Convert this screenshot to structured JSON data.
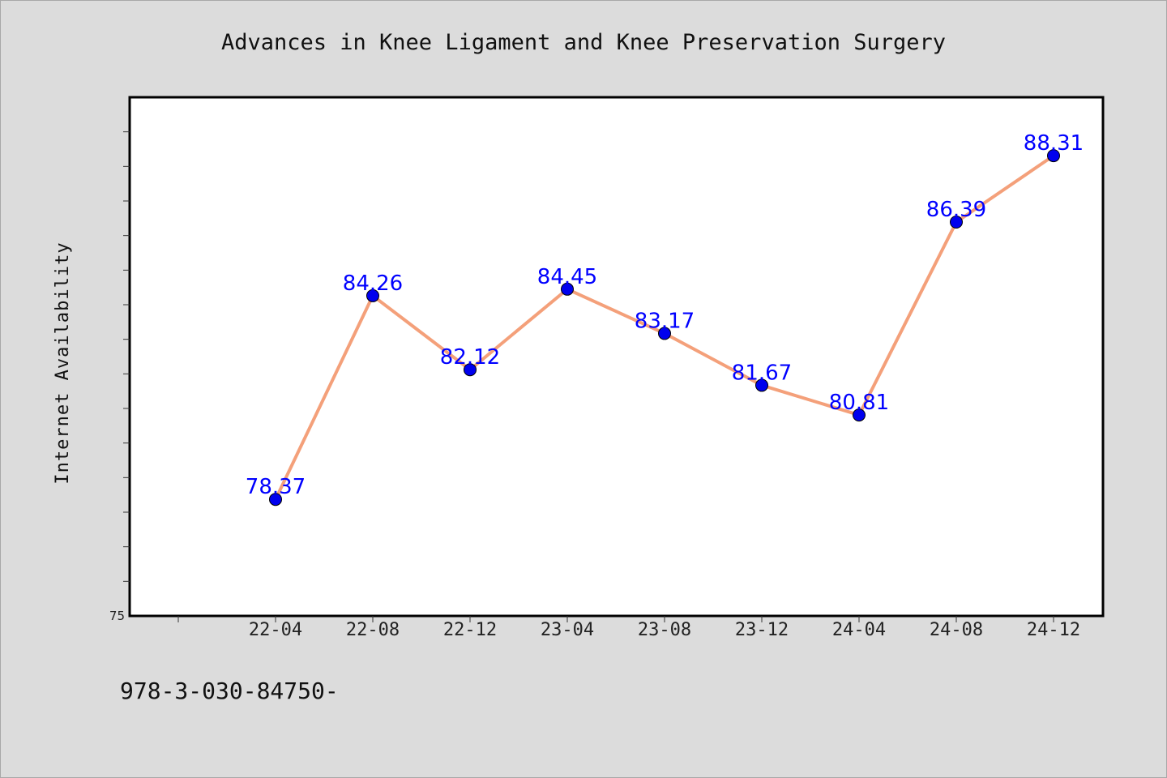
{
  "chart_data": {
    "type": "line",
    "title": "Advances in Knee Ligament and Knee Preservation Surgery",
    "ylabel": "Internet Availability",
    "xlabel": "",
    "categories": [
      "22-04",
      "22-08",
      "22-12",
      "23-04",
      "23-08",
      "23-12",
      "24-04",
      "24-08",
      "24-12"
    ],
    "series": [
      {
        "values": [
          78.37,
          84.26,
          82.12,
          84.45,
          83.17,
          81.67,
          80.81,
          86.39,
          88.31
        ],
        "labels": [
          "78.37",
          "84.26",
          "82.12",
          "84.45",
          "83.17",
          "81.67",
          "80.81",
          "86.39",
          "88.31"
        ],
        "line_color": "#f4a07a",
        "marker_color": "#0000ee"
      }
    ],
    "ylim": [
      75,
      90
    ],
    "y_tick_labels": [
      "75"
    ],
    "label_color": "#0000ff",
    "grid": false,
    "background": "#ffffff"
  },
  "footnote": "978-3-030-84750-"
}
